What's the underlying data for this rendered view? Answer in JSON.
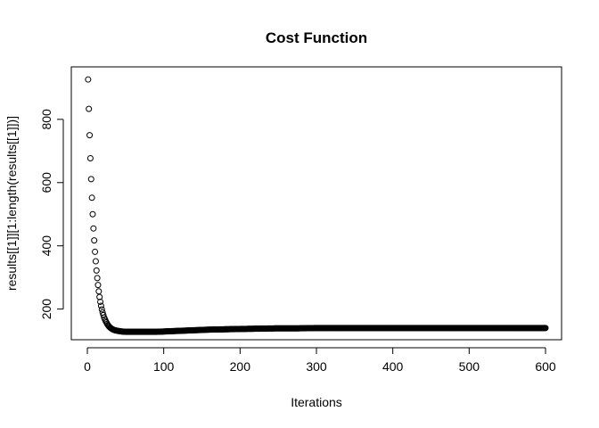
{
  "chart_data": {
    "type": "scatter",
    "title": "Cost Function",
    "xlabel": "Iterations",
    "ylabel": "results[[1]][1:length(results[[1]])]",
    "xlim": [
      -21,
      621
    ],
    "ylim": [
      103,
      966
    ],
    "x_ticks": [
      0,
      100,
      200,
      300,
      400,
      500,
      600
    ],
    "y_ticks": [
      200,
      400,
      600,
      800
    ],
    "marker": "open-circle",
    "grid": false,
    "series": [
      {
        "x": [
          1,
          2,
          3,
          4,
          5,
          6,
          7,
          8,
          9,
          10,
          11,
          12,
          13,
          14,
          15,
          16,
          17,
          18,
          19,
          20,
          22,
          24,
          26,
          28,
          30,
          33,
          36,
          40,
          45,
          50,
          55,
          60,
          70,
          80,
          90,
          100,
          120,
          140,
          160,
          180,
          200,
          225,
          250,
          275,
          300,
          325,
          350,
          375,
          400,
          425,
          450,
          475,
          500,
          525,
          550,
          575,
          600
        ],
        "y": [
          926,
          833,
          750,
          677,
          611,
          552,
          500,
          455,
          417,
          381,
          351,
          322,
          298,
          276,
          256,
          238,
          223,
          210,
          199,
          189,
          173,
          162,
          153,
          146,
          141,
          136,
          133,
          131,
          129,
          128,
          128,
          128,
          128,
          128,
          128,
          129,
          131,
          133,
          135,
          136,
          137,
          138,
          139,
          139,
          140,
          140,
          140,
          140,
          140,
          140,
          140,
          140,
          140,
          140,
          140,
          140,
          140
        ]
      }
    ]
  }
}
